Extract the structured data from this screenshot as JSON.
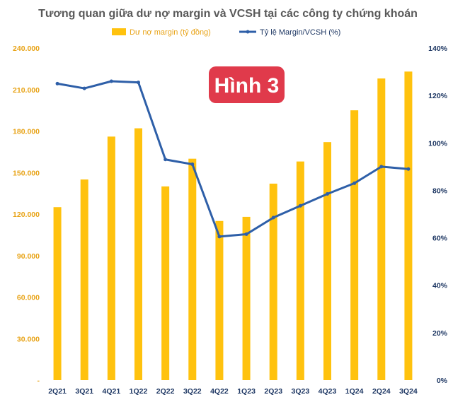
{
  "chart_data": {
    "type": "bar",
    "title": "Tương quan giữa dư nợ margin và VCSH tại các công ty chứng khoán",
    "badge": "Hình 3",
    "categories": [
      "2Q21",
      "3Q21",
      "4Q21",
      "1Q22",
      "2Q22",
      "3Q22",
      "4Q22",
      "1Q23",
      "2Q23",
      "3Q23",
      "4Q23",
      "1Q24",
      "2Q24",
      "3Q24"
    ],
    "series": [
      {
        "name": "Dư nợ margin (tỷ đồng)",
        "type": "bar",
        "axis": "left",
        "color": "#FFC20E",
        "values": [
          125000,
          145000,
          176000,
          182000,
          140000,
          160000,
          115000,
          118000,
          142000,
          158000,
          172000,
          195000,
          218000,
          223000
        ]
      },
      {
        "name": "Tỷ lệ Margin/VCSH (%)",
        "type": "line",
        "axis": "right",
        "color": "#2E5FA8",
        "values": [
          125,
          123,
          126,
          125.5,
          93,
          91,
          60.5,
          61.5,
          68.5,
          73.5,
          78.5,
          83,
          90,
          89
        ]
      }
    ],
    "y_left": {
      "ylim": [
        0,
        240000
      ],
      "ticks": [
        0,
        30000,
        60000,
        90000,
        120000,
        150000,
        180000,
        210000,
        240000
      ],
      "tick_labels": [
        "-",
        "30.000",
        "60.000",
        "90.000",
        "120.000",
        "150.000",
        "180.000",
        "210.000",
        "240.000"
      ]
    },
    "y_right": {
      "ylim": [
        0,
        140
      ],
      "ticks": [
        0,
        20,
        40,
        60,
        80,
        100,
        120,
        140
      ],
      "tick_labels": [
        "0%",
        "20%",
        "40%",
        "60%",
        "80%",
        "100%",
        "120%",
        "140%"
      ]
    },
    "grid": false,
    "legend_position": "top",
    "colors": {
      "left_axis": "#E8A317",
      "right_axis": "#1F3864",
      "badge": "#E03A4B",
      "title": "#595959"
    }
  }
}
